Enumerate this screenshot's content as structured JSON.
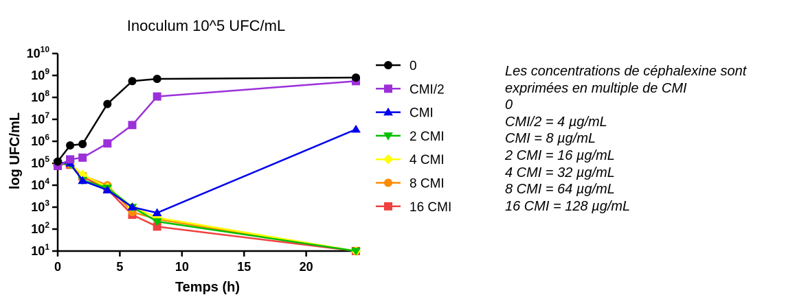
{
  "chart_data": {
    "type": "line",
    "title": "Inoculum 10^5 UFC/mL",
    "xlabel": "Temps (h)",
    "ylabel": "log UFC/mL",
    "y_scale": "log",
    "xlim": [
      0,
      24
    ],
    "ylim": [
      10,
      10000000000
    ],
    "x_ticks": [
      0,
      5,
      10,
      15,
      20
    ],
    "y_ticks": [
      {
        "base": "10",
        "exp": "1",
        "value": 10
      },
      {
        "base": "10",
        "exp": "2",
        "value": 100
      },
      {
        "base": "10",
        "exp": "3",
        "value": 1000
      },
      {
        "base": "10",
        "exp": "4",
        "value": 10000
      },
      {
        "base": "10",
        "exp": "5",
        "value": 100000
      },
      {
        "base": "10",
        "exp": "6",
        "value": 1000000
      },
      {
        "base": "10",
        "exp": "7",
        "value": 10000000
      },
      {
        "base": "10",
        "exp": "8",
        "value": 100000000
      },
      {
        "base": "10",
        "exp": "9",
        "value": 1000000000
      },
      {
        "base": "10",
        "exp": "10",
        "value": 10000000000
      }
    ],
    "grid": false,
    "legend_position": "right",
    "x": [
      0,
      1,
      2,
      4,
      6,
      8,
      24
    ],
    "series": [
      {
        "name": "0",
        "color": "#000000",
        "marker": "circle",
        "values": [
          120000,
          650000,
          750000,
          50000000,
          550000000,
          700000000,
          800000000
        ]
      },
      {
        "name": "CMI/2",
        "color": "#9b30d9",
        "marker": "square",
        "values": [
          75000,
          150000,
          180000,
          800000,
          5500000,
          110000000,
          550000000
        ]
      },
      {
        "name": "CMI",
        "color": "#0000ee",
        "marker": "triangle-up",
        "values": [
          110000,
          100000,
          16000,
          6000,
          1000,
          550,
          3500000
        ]
      },
      {
        "name": "2 CMI",
        "color": "#00c000",
        "marker": "triangle-down",
        "values": [
          100000,
          90000,
          17000,
          7500,
          1000,
          220,
          10
        ]
      },
      {
        "name": "4 CMI",
        "color": "#ffff00",
        "marker": "diamond",
        "values": [
          110000,
          95000,
          30000,
          8000,
          1000,
          330,
          10
        ]
      },
      {
        "name": "8 CMI",
        "color": "#ff8c00",
        "marker": "circle",
        "values": [
          100000,
          90000,
          28000,
          10000,
          600,
          280,
          10
        ]
      },
      {
        "name": "16 CMI",
        "color": "#f04040",
        "marker": "square",
        "values": [
          95000,
          85000,
          25000,
          6500,
          450,
          130,
          10
        ]
      }
    ]
  },
  "notes": [
    "Les concentrations de céphalexine sont",
    "exprimées en multiple de CMI",
    "0",
    "CMI/2 = 4 µg/mL",
    "CMI = 8 µg/mL",
    "2 CMI = 16 µg/mL",
    "4 CMI = 32 µg/mL",
    "8 CMI = 64 µg/mL",
    "16 CMI = 128 µg/mL"
  ]
}
